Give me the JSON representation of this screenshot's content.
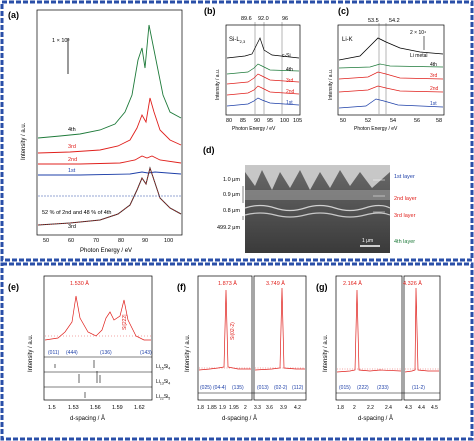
{
  "panels": {
    "a": {
      "label": "(a)",
      "xlabel": "Photon Energy / eV",
      "ylabel": "Intensity / a.u.",
      "scale": "1 × 10⁵",
      "xticks": [
        "50",
        "60",
        "70",
        "80",
        "90",
        "100"
      ],
      "curves": [
        "4th",
        "3rd",
        "2nd",
        "1st"
      ],
      "fit_note": "52 % of 2nd and 48 % of 4th",
      "fit_curve": "3rd"
    },
    "b": {
      "label": "(b)",
      "title": "Si-L",
      "title_sub": "2,3",
      "top_marks": [
        "89.6",
        "92.0",
        "96"
      ],
      "xlabel": "Photon Energy / eV",
      "ylabel": "Intensity / a.u.",
      "xticks": [
        "80",
        "85",
        "90",
        "95",
        "100",
        "105"
      ],
      "curves": [
        "c-Si",
        "4th",
        "3rd",
        "2nd",
        "1st"
      ]
    },
    "c": {
      "label": "(c)",
      "title": "Li-K",
      "top_marks": [
        "53.5",
        "54.2"
      ],
      "scale": "2 × 10⁴",
      "xlabel": "Photon Energy / eV",
      "ylabel": "Intensity / a.u.",
      "xticks": [
        "50",
        "52",
        "54",
        "56",
        "58"
      ],
      "curves": [
        "Li metal",
        "4th",
        "3rd",
        "2nd",
        "1st"
      ]
    },
    "d": {
      "label": "(d)",
      "thickness": [
        "1.0 μm",
        "0.9 μm",
        "0.8 μm",
        "499.2 μm"
      ],
      "layers": [
        "1st layer",
        "2nd layer",
        "3rd layer",
        "4th layer"
      ],
      "scalebar": "1 μm"
    },
    "e": {
      "label": "(e)",
      "peak": "1.530 Å",
      "peak_id": "Si[222]",
      "hkl": [
        "(011)",
        "(444)",
        "(136)",
        "(143)"
      ],
      "refs": [
        {
          "main": "Li",
          "sub": "15",
          "tail": "Si",
          "sub2": "4"
        },
        {
          "main": "Li",
          "sub": "13",
          "tail": "Si",
          "sub2": "4"
        },
        {
          "main": "Li",
          "sub": "22",
          "tail": "Si",
          "sub2": "5"
        }
      ],
      "xlabel": "d-spacing / Å",
      "ylabel": "Intensity / a.u.",
      "xticks": [
        "1.5",
        "1.53",
        "1.56",
        "1.59",
        "1.62"
      ]
    },
    "f": {
      "label": "(f)",
      "peaks": [
        "1.873 Å",
        "3.749 Å"
      ],
      "peak_id": "Si(02-2)",
      "hkl": [
        "(025)",
        "(04-4)",
        "(135)",
        "(013)",
        "(02-2)",
        "(112)"
      ],
      "xlabel": "d-spacing / Å",
      "ylabel": "Intensity / a.u.",
      "xticks": [
        "1.8",
        "1.85",
        "1.9",
        "1.95",
        "2",
        "3.3",
        "3.6",
        "3.9",
        "4.2"
      ]
    },
    "g": {
      "label": "(g)",
      "peaks": [
        "2.164 Å",
        "4.326 Å"
      ],
      "hkl": [
        "(015)",
        "(222)",
        "(233)",
        "(11-2)"
      ],
      "xlabel": "d-spacing / Å",
      "ylabel": "Intensity / a.u.",
      "xticks": [
        "1.8",
        "2",
        "2.2",
        "2.4",
        "4.3",
        "4.4",
        "4.5"
      ]
    }
  },
  "colors": {
    "border": "#2a4fa8",
    "red": "#e0201c",
    "blue": "#1d3fa8",
    "green": "#1e7a3a",
    "dark": "#2a2a2a"
  }
}
